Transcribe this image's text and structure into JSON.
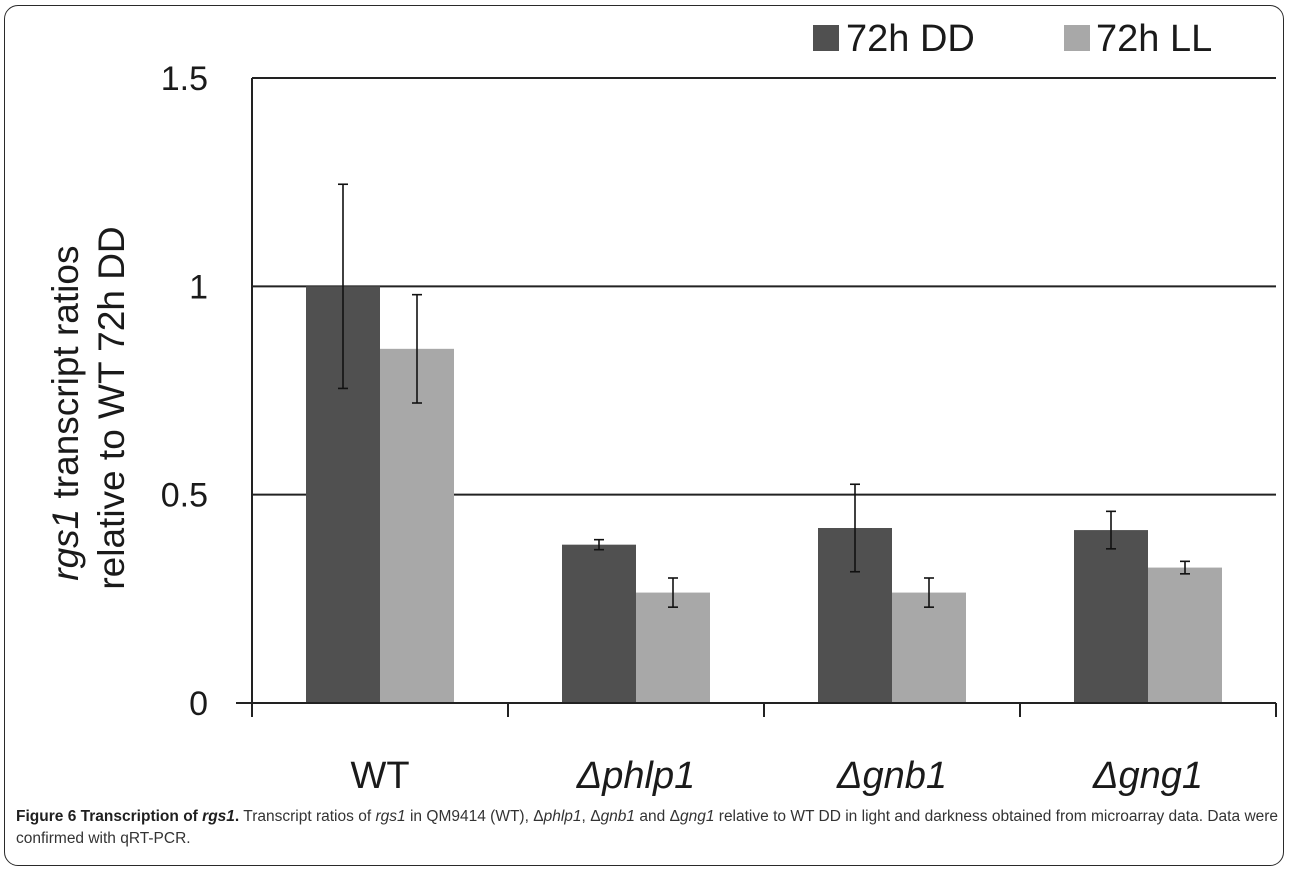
{
  "chart_data": {
    "type": "bar",
    "categories": [
      "WT",
      "Δphlp1",
      "Δgnb1",
      "Δgng1"
    ],
    "category_italic": [
      false,
      true,
      true,
      true
    ],
    "series": [
      {
        "name": "72h DD",
        "color": "#505050",
        "values": [
          1.0,
          0.38,
          0.42,
          0.415
        ],
        "errors": [
          0.245,
          0.012,
          0.105,
          0.045
        ]
      },
      {
        "name": "72h LL",
        "color": "#a8a8a8",
        "values": [
          0.85,
          0.265,
          0.265,
          0.325
        ],
        "errors": [
          0.13,
          0.035,
          0.035,
          0.015
        ]
      }
    ],
    "ylim": [
      0,
      1.5
    ],
    "yticks": [
      0,
      0.5,
      1,
      1.5
    ],
    "ytick_labels": [
      "0",
      "0.5",
      "1",
      "1.5"
    ],
    "ylabel": {
      "line1_italic": "rgs1",
      "line1_rest": " transcript ratios",
      "line2": "relative to WT 72h DD"
    },
    "xlabel": "",
    "grid": "horizontal",
    "legend_position": "top-right"
  },
  "caption": {
    "figure_label": "Figure 6 Transcription of ",
    "figure_label_gene": "rgs1",
    "figure_label_end": ".",
    "parts": [
      {
        "t": " Transcript ratios of ",
        "i": false
      },
      {
        "t": "rgs1",
        "i": true
      },
      {
        "t": " in QM9414 (WT), Δ",
        "i": false
      },
      {
        "t": "phlp1",
        "i": true
      },
      {
        "t": ", Δ",
        "i": false
      },
      {
        "t": "gnb1",
        "i": true
      },
      {
        "t": " and Δ",
        "i": false
      },
      {
        "t": "gng1",
        "i": true
      },
      {
        "t": " relative to WT DD in light and darkness obtained from microarray data. Data were confirmed with qRT-PCR.",
        "i": false
      }
    ]
  }
}
